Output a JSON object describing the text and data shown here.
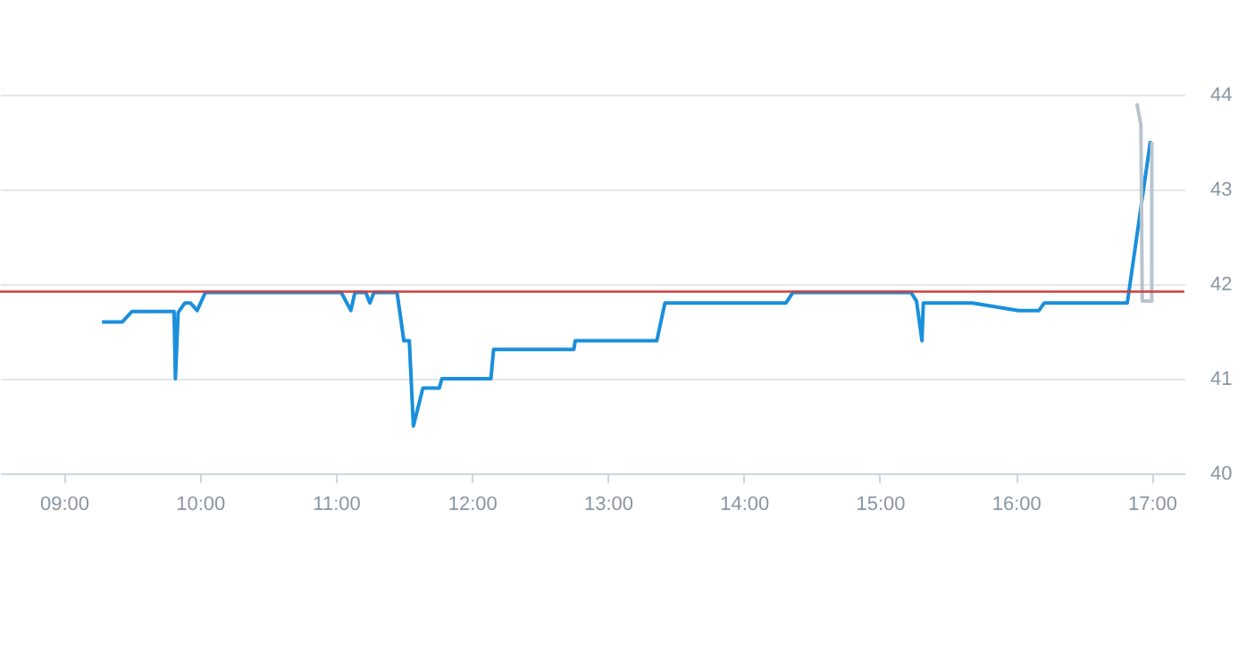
{
  "chart_data": {
    "type": "line",
    "x": [
      9.28,
      9.43,
      9.5,
      9.81,
      9.82,
      9.84,
      9.89,
      9.93,
      9.98,
      10.04,
      11.04,
      11.11,
      11.14,
      11.22,
      11.25,
      11.28,
      11.45,
      11.5,
      11.54,
      11.57,
      11.64,
      11.76,
      11.78,
      12.14,
      12.16,
      12.75,
      12.76,
      13.36,
      13.42,
      14.31,
      14.36,
      15.23,
      15.27,
      15.31,
      15.32,
      15.68,
      16.02,
      16.17,
      16.21,
      16.82,
      16.99
    ],
    "series": [
      {
        "color": "#1a8fdb",
        "values": [
          41.6,
          41.6,
          41.71,
          41.71,
          41.0,
          41.7,
          41.8,
          41.8,
          41.72,
          41.91,
          41.91,
          41.72,
          41.91,
          41.91,
          41.8,
          41.91,
          41.91,
          41.4,
          41.4,
          40.5,
          40.9,
          40.9,
          41.0,
          41.0,
          41.31,
          41.31,
          41.4,
          41.4,
          41.8,
          41.8,
          41.91,
          41.91,
          41.82,
          41.4,
          41.8,
          41.8,
          41.72,
          41.72,
          41.8,
          41.8,
          43.51
        ]
      },
      {
        "color": "#b8c4cf",
        "x": [
          16.89,
          16.92,
          16.93,
          17.0,
          17.0
        ],
        "values": [
          43.91,
          43.68,
          41.82,
          41.82,
          43.5
        ]
      }
    ],
    "xlim": [
      8.53,
      17.24
    ],
    "xticks": [
      {
        "value": 9,
        "label": "09:00"
      },
      {
        "value": 10,
        "label": "10:00"
      },
      {
        "value": 11,
        "label": "11:00"
      },
      {
        "value": 12,
        "label": "12:00"
      },
      {
        "value": 13,
        "label": "13:00"
      },
      {
        "value": 14,
        "label": "14:00"
      },
      {
        "value": 15,
        "label": "15:00"
      },
      {
        "value": 16,
        "label": "16:00"
      },
      {
        "value": 17,
        "label": "17:00"
      }
    ],
    "ylim": [
      40,
      44
    ],
    "yticks": [
      40,
      41,
      42,
      43,
      44
    ],
    "ref_lines": [
      {
        "axis": "y",
        "value": 41.92,
        "color": "#d23c3c"
      }
    ],
    "grid": "y",
    "line_style": "solid"
  }
}
